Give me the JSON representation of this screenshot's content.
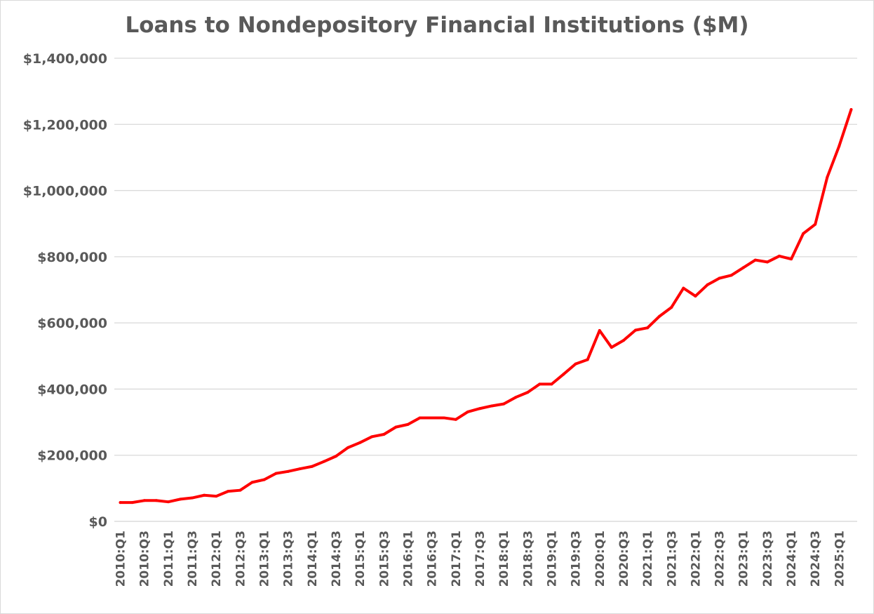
{
  "chart_data": {
    "type": "line",
    "title": "Loans to Nondepository Financial Institutions ($M)",
    "xlabel": "",
    "ylabel": "",
    "ylim": [
      0,
      1400000
    ],
    "y_ticks": [
      0,
      200000,
      400000,
      600000,
      800000,
      1000000,
      1200000,
      1400000
    ],
    "y_tick_labels": [
      "$0",
      "$200,000",
      "$400,000",
      "$600,000",
      "$800,000",
      "$1,000,000",
      "$1,200,000",
      "$1,400,000"
    ],
    "grid": true,
    "legend": "none",
    "line_color": "#ff0000",
    "x": [
      "2010:Q1",
      "2010:Q2",
      "2010:Q3",
      "2010:Q4",
      "2011:Q1",
      "2011:Q2",
      "2011:Q3",
      "2011:Q4",
      "2012:Q1",
      "2012:Q2",
      "2012:Q3",
      "2012:Q4",
      "2013:Q1",
      "2013:Q2",
      "2013:Q3",
      "2013:Q4",
      "2014:Q1",
      "2014:Q2",
      "2014:Q3",
      "2014:Q4",
      "2015:Q1",
      "2015:Q2",
      "2015:Q3",
      "2015:Q4",
      "2016:Q1",
      "2016:Q2",
      "2016:Q3",
      "2016:Q4",
      "2017:Q1",
      "2017:Q2",
      "2017:Q3",
      "2017:Q4",
      "2018:Q1",
      "2018:Q2",
      "2018:Q3",
      "2018:Q4",
      "2019:Q1",
      "2019:Q2",
      "2019:Q3",
      "2019:Q4",
      "2020:Q1",
      "2020:Q2",
      "2020:Q3",
      "2020:Q4",
      "2021:Q1",
      "2021:Q2",
      "2021:Q3",
      "2021:Q4",
      "2022:Q1",
      "2022:Q2",
      "2022:Q3",
      "2022:Q4",
      "2023:Q1",
      "2023:Q2",
      "2023:Q3",
      "2023:Q4",
      "2024:Q1",
      "2024:Q2",
      "2024:Q3",
      "2024:Q4",
      "2025:Q1",
      "2025:Q2"
    ],
    "x_tick_labels": [
      "2010:Q1",
      "2010:Q3",
      "2011:Q1",
      "2011:Q3",
      "2012:Q1",
      "2012:Q3",
      "2013:Q1",
      "2013:Q3",
      "2014:Q1",
      "2014:Q3",
      "2015:Q1",
      "2015:Q3",
      "2016:Q1",
      "2016:Q3",
      "2017:Q1",
      "2017:Q3",
      "2018:Q1",
      "2018:Q3",
      "2019:Q1",
      "2019:Q3",
      "2020:Q1",
      "2020:Q3",
      "2021:Q1",
      "2021:Q3",
      "2022:Q1",
      "2022:Q3",
      "2023:Q1",
      "2023:Q3",
      "2024:Q1",
      "2024:Q3",
      "2025:Q1"
    ],
    "series": [
      {
        "values": [
          57000,
          57000,
          63000,
          63000,
          59000,
          67000,
          71000,
          79000,
          76000,
          91000,
          94000,
          118000,
          126000,
          145000,
          151000,
          159000,
          166000,
          181000,
          197000,
          223000,
          238000,
          256000,
          263000,
          285000,
          293000,
          313000,
          313000,
          313000,
          308000,
          331000,
          341000,
          349000,
          355000,
          375000,
          390000,
          415000,
          415000,
          445000,
          476000,
          489000,
          577000,
          526000,
          547000,
          578000,
          585000,
          620000,
          647000,
          705000,
          681000,
          715000,
          735000,
          744000,
          767000,
          790000,
          784000,
          802000,
          793000,
          870000,
          898000,
          1040000,
          1135000,
          1245000
        ]
      }
    ]
  }
}
